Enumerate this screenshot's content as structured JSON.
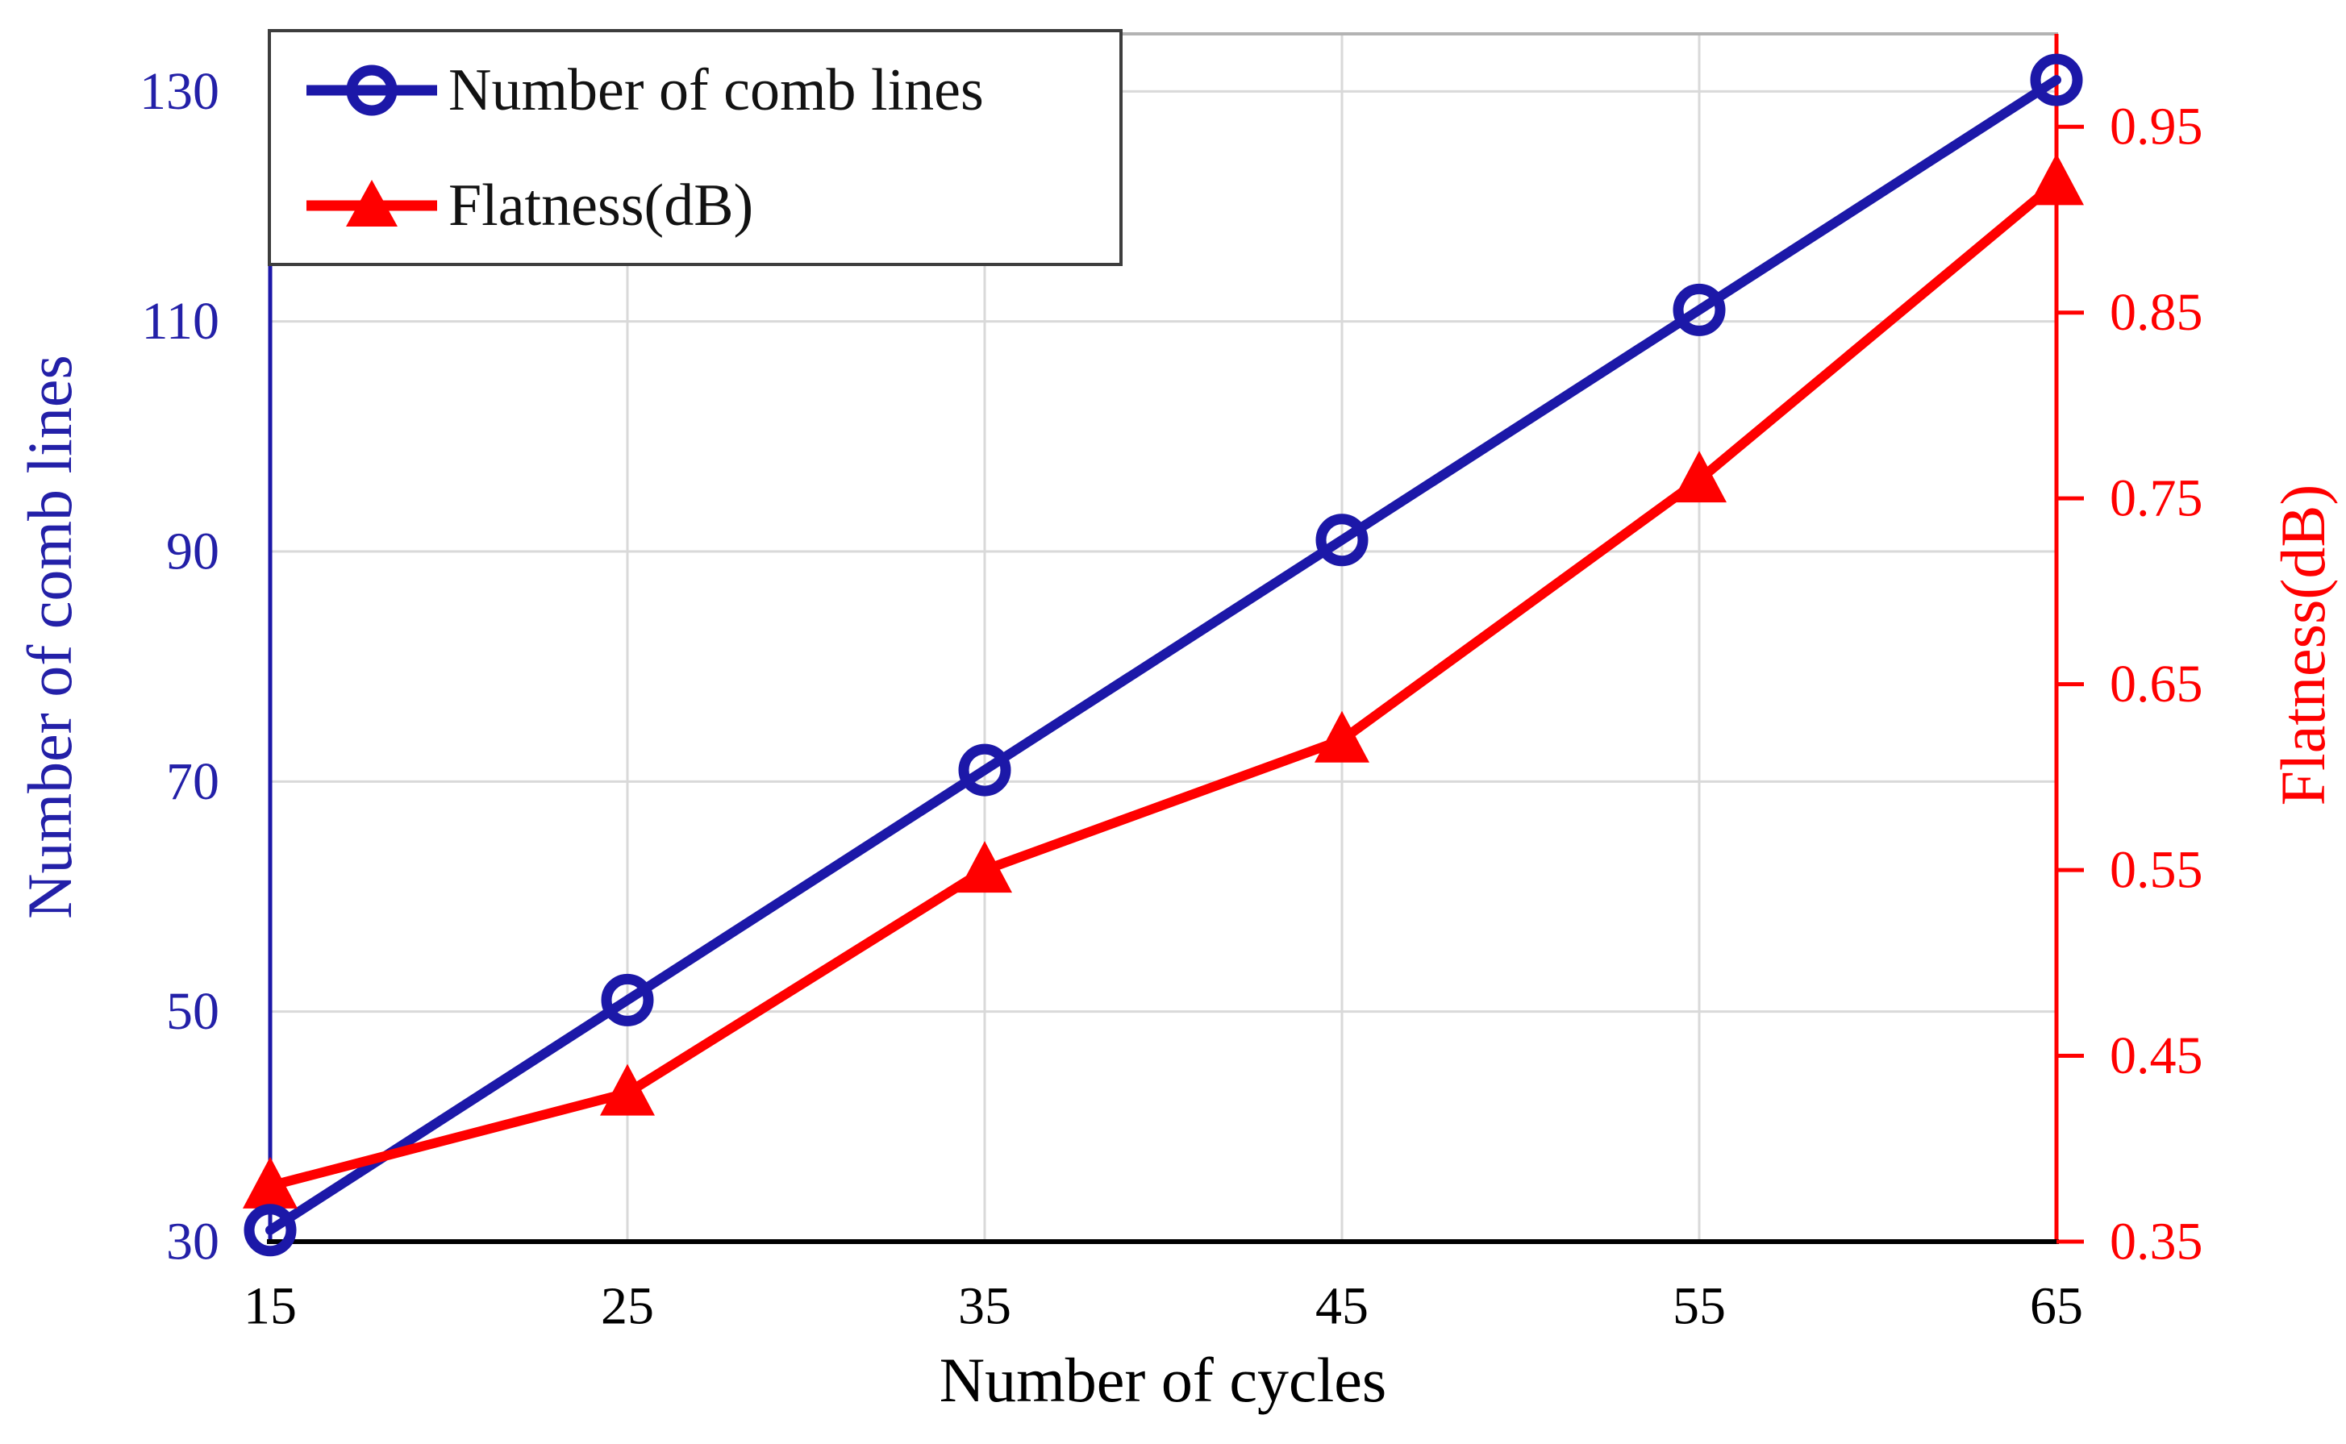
{
  "chart_data": {
    "type": "line",
    "title": "",
    "xlabel": "Number of cycles",
    "ylabel_left": "Number of comb lines",
    "ylabel_right": "Flatness(dB)",
    "x": [
      15,
      25,
      35,
      45,
      55,
      65
    ],
    "x_ticks": [
      "15",
      "25",
      "35",
      "45",
      "55",
      "65"
    ],
    "left_ticks": [
      "30",
      "50",
      "70",
      "90",
      "110",
      "130"
    ],
    "right_ticks": [
      "0.35",
      "0.45",
      "0.55",
      "0.65",
      "0.75",
      "0.85",
      "0.95"
    ],
    "xlim": [
      15,
      65
    ],
    "ylim_left": [
      30,
      135
    ],
    "ylim_right": [
      0.35,
      1.0
    ],
    "grid": true,
    "legend_position": "upper-left",
    "series": [
      {
        "name": "Number of comb lines",
        "axis": "left",
        "color": "#1c18a8",
        "marker": "circle",
        "values": [
          31,
          51,
          71,
          91,
          111,
          131
        ]
      },
      {
        "name": "Flatness(dB)",
        "axis": "right",
        "color": "#ff0000",
        "marker": "triangle-up",
        "values": [
          0.38,
          0.43,
          0.55,
          0.62,
          0.76,
          0.92
        ]
      }
    ]
  },
  "colors": {
    "left_axis_text": "#2320a8",
    "right_axis": "#ff0000",
    "x_axis": "#000000",
    "grid": "#d9d9d9",
    "top_border": "#b3b3b3",
    "background": "#ffffff",
    "legend_border": "#3d3d3d",
    "legend_text": "#121212"
  }
}
